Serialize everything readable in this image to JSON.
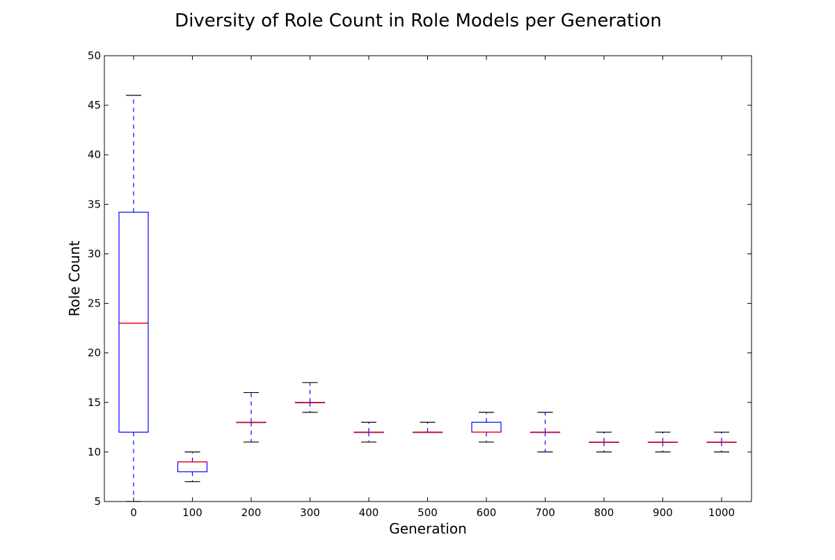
{
  "chart_data": {
    "type": "box",
    "title": "Diversity of Role Count in Role Models per Generation",
    "xlabel": "Generation",
    "ylabel": "Role Count",
    "ylim": [
      5,
      50
    ],
    "yticks": [
      5,
      10,
      15,
      20,
      25,
      30,
      35,
      40,
      45,
      50
    ],
    "categories": [
      "0",
      "100",
      "200",
      "300",
      "400",
      "500",
      "600",
      "700",
      "800",
      "900",
      "1000"
    ],
    "boxes": [
      {
        "category": "0",
        "whisker_low": 5,
        "q1": 12,
        "median": 23,
        "q3": 34.2,
        "whisker_high": 46
      },
      {
        "category": "100",
        "whisker_low": 7,
        "q1": 8,
        "median": 9,
        "q3": 9,
        "whisker_high": 10
      },
      {
        "category": "200",
        "whisker_low": 11,
        "q1": 13,
        "median": 13,
        "q3": 13,
        "whisker_high": 16
      },
      {
        "category": "300",
        "whisker_low": 14,
        "q1": 15,
        "median": 15,
        "q3": 15,
        "whisker_high": 17
      },
      {
        "category": "400",
        "whisker_low": 11,
        "q1": 12,
        "median": 12,
        "q3": 12,
        "whisker_high": 13
      },
      {
        "category": "500",
        "whisker_low": 12,
        "q1": 12,
        "median": 12,
        "q3": 12,
        "whisker_high": 13
      },
      {
        "category": "600",
        "whisker_low": 11,
        "q1": 12,
        "median": 12,
        "q3": 13,
        "whisker_high": 14
      },
      {
        "category": "700",
        "whisker_low": 10,
        "q1": 12,
        "median": 12,
        "q3": 12,
        "whisker_high": 14
      },
      {
        "category": "800",
        "whisker_low": 10,
        "q1": 11,
        "median": 11,
        "q3": 11,
        "whisker_high": 12
      },
      {
        "category": "900",
        "whisker_low": 10,
        "q1": 11,
        "median": 11,
        "q3": 11,
        "whisker_high": 12
      },
      {
        "category": "1000",
        "whisker_low": 10,
        "q1": 11,
        "median": 11,
        "q3": 11,
        "whisker_high": 12
      }
    ],
    "colors": {
      "box": "#0000ff",
      "whisker": "#0000ff",
      "cap": "#000000",
      "median": "#ff0000"
    },
    "grid": false,
    "legend": "none"
  }
}
